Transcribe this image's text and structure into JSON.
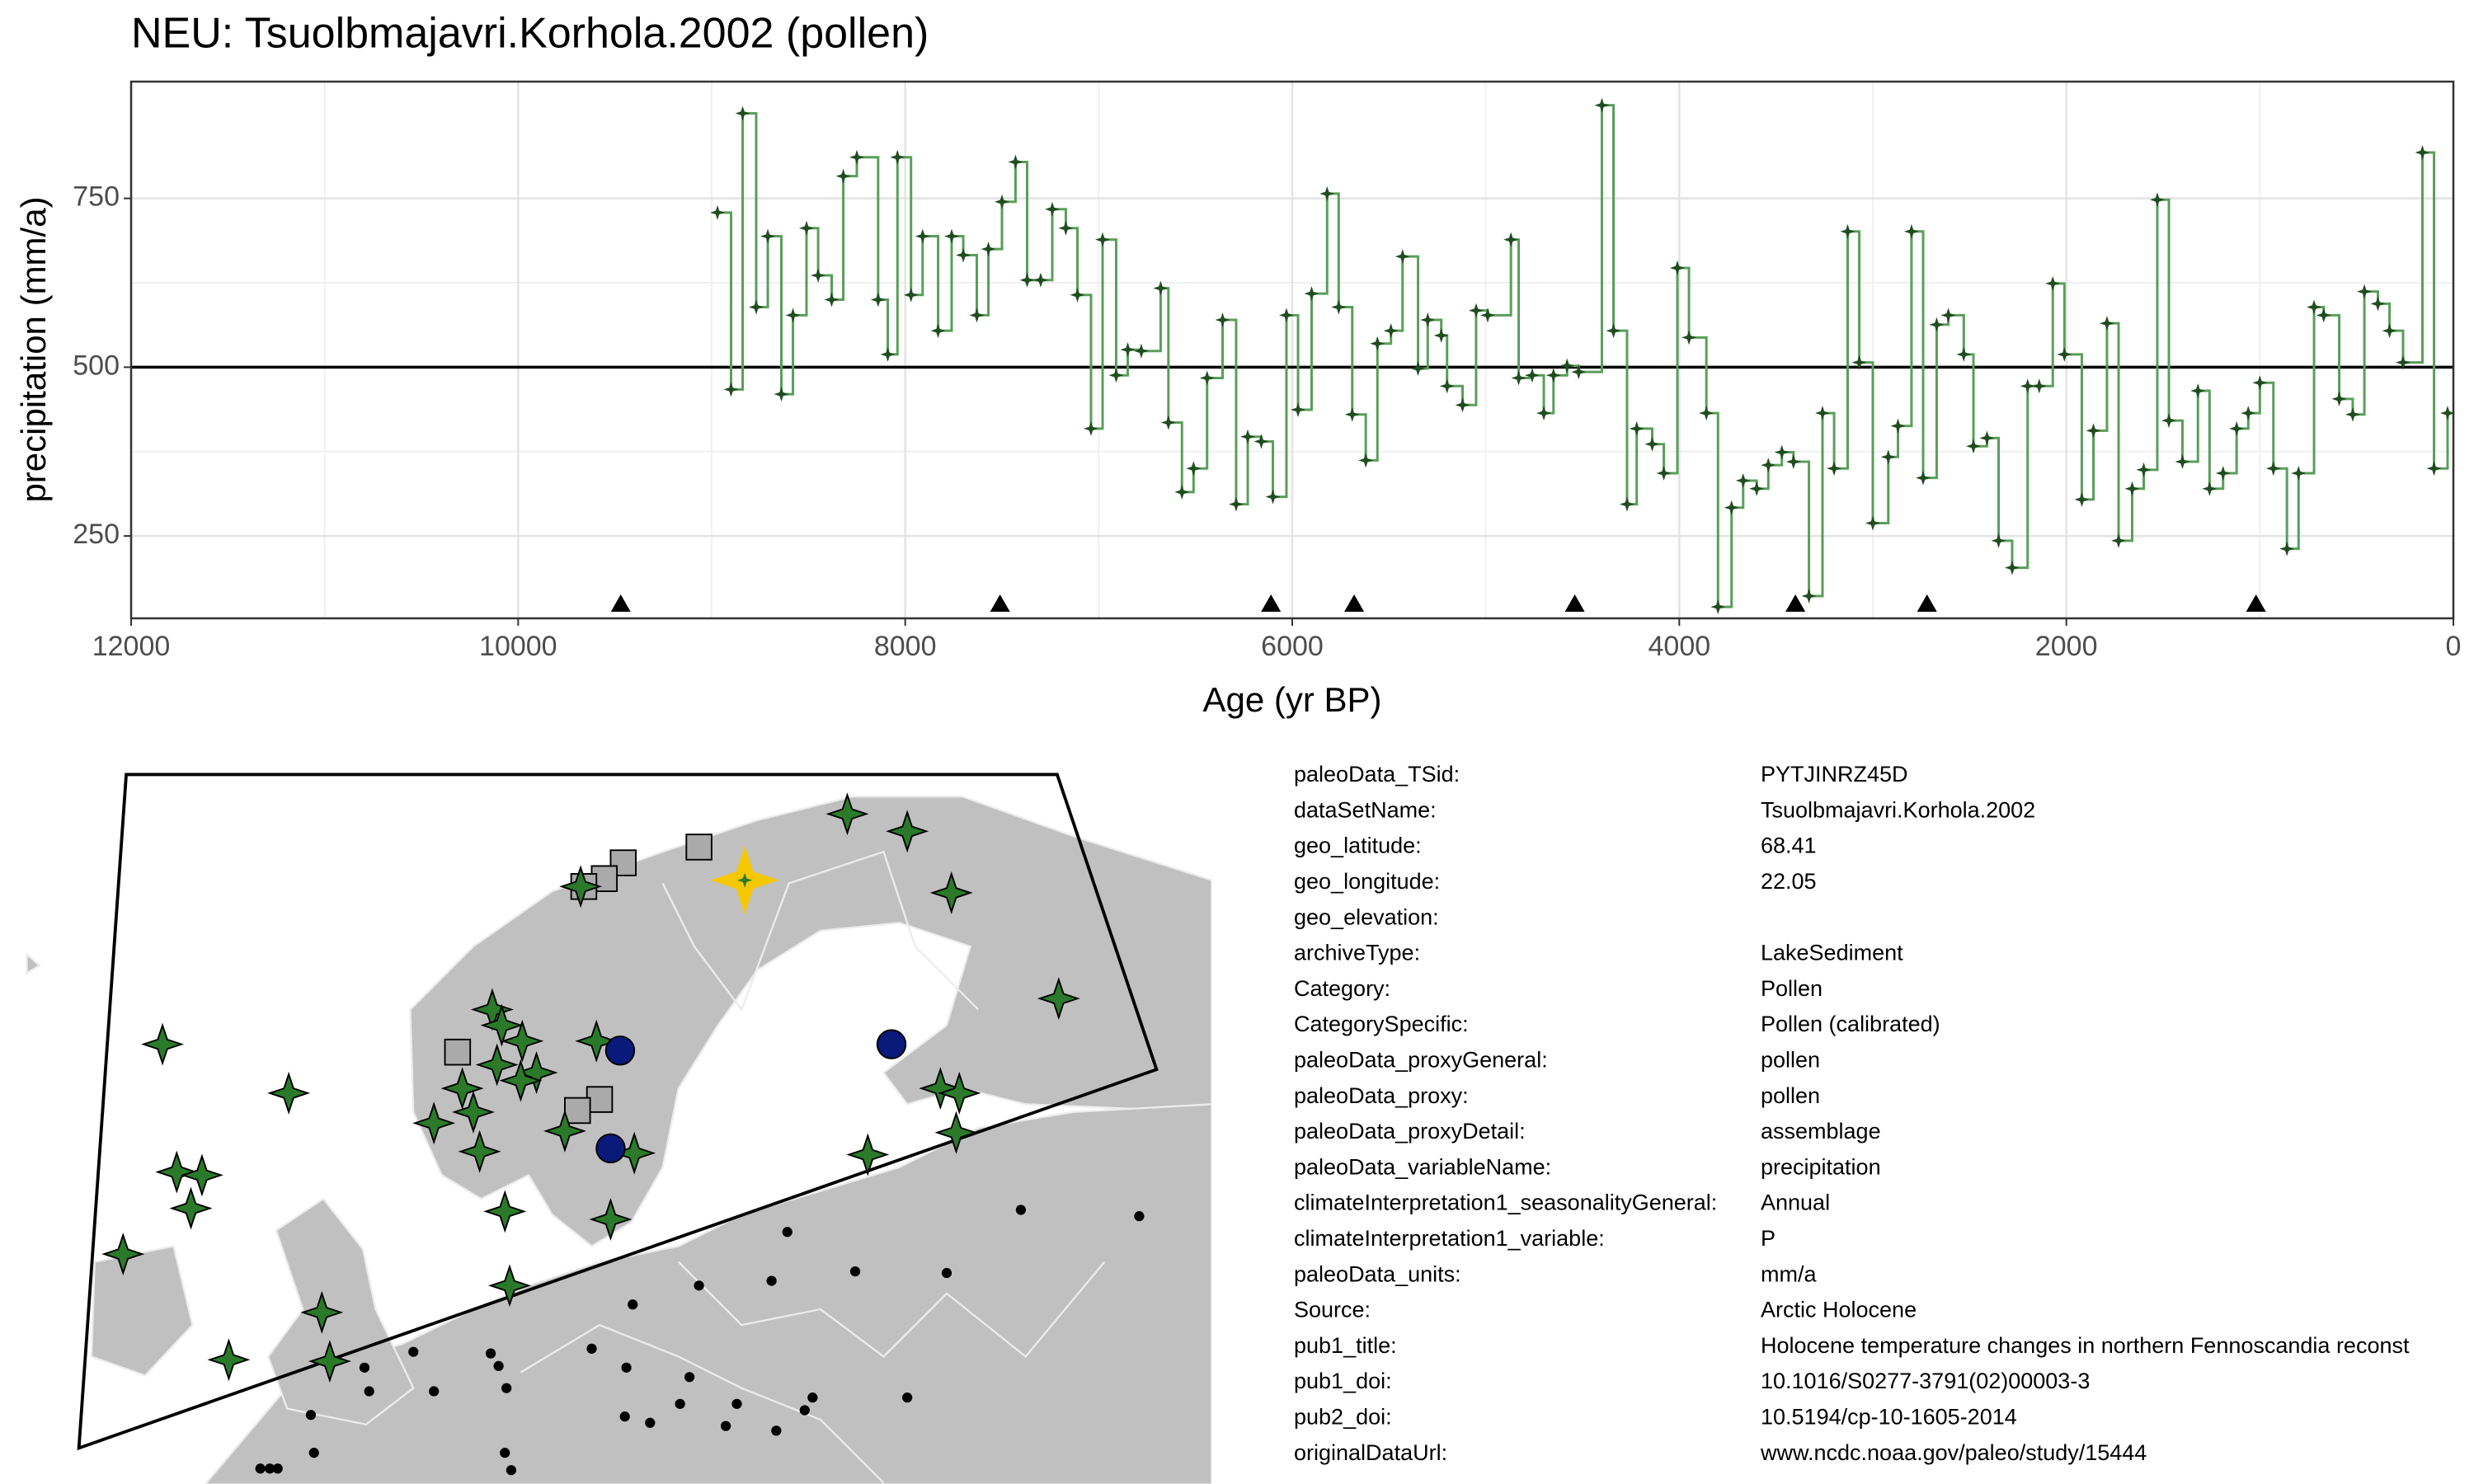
{
  "chart_data": {
    "type": "line",
    "title": "NEU: Tsuolbmajavri.Korhola.2002 (pollen)",
    "x_label": "Age (yr BP)",
    "y_label": "precipitation (mm/a)",
    "x": [
      8970,
      8900,
      8840,
      8770,
      8710,
      8640,
      8580,
      8510,
      8450,
      8380,
      8320,
      8250,
      8140,
      8090,
      8040,
      7970,
      7910,
      7830,
      7760,
      7700,
      7630,
      7570,
      7500,
      7430,
      7370,
      7300,
      7240,
      7170,
      7110,
      7040,
      6980,
      6910,
      6850,
      6780,
      6680,
      6640,
      6570,
      6510,
      6440,
      6360,
      6290,
      6230,
      6160,
      6100,
      6030,
      5970,
      5900,
      5820,
      5760,
      5690,
      5620,
      5560,
      5490,
      5430,
      5350,
      5300,
      5230,
      5200,
      5120,
      5050,
      4990,
      4870,
      4830,
      4760,
      4700,
      4650,
      4580,
      4520,
      4400,
      4340,
      4270,
      4220,
      4140,
      4080,
      4010,
      3950,
      3860,
      3800,
      3730,
      3670,
      3600,
      3540,
      3470,
      3410,
      3330,
      3260,
      3200,
      3130,
      3070,
      3000,
      2920,
      2870,
      2800,
      2740,
      2670,
      2610,
      2530,
      2480,
      2410,
      2350,
      2280,
      2200,
      2140,
      2070,
      2010,
      1920,
      1860,
      1790,
      1730,
      1660,
      1600,
      1530,
      1470,
      1400,
      1320,
      1260,
      1190,
      1120,
      1060,
      1000,
      930,
      860,
      800,
      720,
      670,
      590,
      520,
      460,
      390,
      330,
      260,
      160,
      100,
      30
    ],
    "series": [
      {
        "color": "#5a9e5a",
        "marker_color": "#1f4d1f",
        "values": [
          729,
          467,
          876,
          589,
          694,
          460,
          577,
          706,
          636,
          600,
          783,
          811,
          600,
          519,
          811,
          607,
          694,
          554,
          694,
          666,
          577,
          675,
          745,
          804,
          629,
          629,
          734,
          706,
          607,
          409,
          689,
          488,
          526,
          524,
          617,
          418,
          315,
          350,
          484,
          570,
          297,
          397,
          390,
          308,
          577,
          437,
          609,
          757,
          589,
          430,
          362,
          535,
          554,
          664,
          498,
          570,
          547,
          472,
          444,
          584,
          577,
          689,
          484,
          488,
          432,
          488,
          502,
          493,
          888,
          554,
          297,
          409,
          386,
          343,
          647,
          544,
          432,
          145,
          292,
          332,
          320,
          355,
          374,
          360,
          161,
          432,
          350,
          701,
          507,
          269,
          367,
          413,
          701,
          336,
          563,
          577,
          519,
          383,
          395,
          243,
          203,
          472,
          472,
          624,
          519,
          304,
          406,
          565,
          243,
          320,
          348,
          748,
          421,
          360,
          465,
          320,
          343,
          409,
          432,
          477,
          350,
          231,
          343,
          589,
          577,
          453,
          430,
          612,
          594,
          554,
          507,
          818,
          350,
          432
        ]
      }
    ],
    "hline": 500,
    "age_markers": {
      "x": [
        9470,
        7510,
        6110,
        5680,
        4540,
        3400,
        2720,
        1020
      ],
      "y": 150
    },
    "xlim": [
      12000,
      0
    ],
    "xticks": [
      12000,
      10000,
      8000,
      6000,
      4000,
      2000,
      0
    ],
    "ylim": [
      128,
      923
    ],
    "yticks": [
      250,
      500,
      750
    ],
    "grid": true
  },
  "metadata": [
    {
      "label": "paleoData_TSid:",
      "value": "PYTJINRZ45D"
    },
    {
      "label": "dataSetName:",
      "value": "Tsuolbmajavri.Korhola.2002"
    },
    {
      "label": "geo_latitude:",
      "value": "68.41"
    },
    {
      "label": "geo_longitude:",
      "value": "22.05"
    },
    {
      "label": "geo_elevation:"
    },
    {
      "label": "archiveType:",
      "value": "LakeSediment"
    },
    {
      "label": "Category:",
      "value": "Pollen"
    },
    {
      "label": "CategorySpecific:",
      "value": "Pollen (calibrated)"
    },
    {
      "label": "paleoData_proxyGeneral:",
      "value": "pollen"
    },
    {
      "label": "paleoData_proxy:",
      "value": "pollen"
    },
    {
      "label": "paleoData_proxyDetail:",
      "value": "assemblage"
    },
    {
      "label": "paleoData_variableName:",
      "value": "precipitation"
    },
    {
      "label": "climateInterpretation1_seasonalityGeneral:",
      "value": "Annual"
    },
    {
      "label": "climateInterpretation1_variable:",
      "value": "P"
    },
    {
      "label": "paleoData_units:",
      "value": "mm/a"
    },
    {
      "label": "Source:",
      "value": "Arctic Holocene"
    },
    {
      "label": "pub1_title:",
      "value": "Holocene temperature changes in northern Fennoscandia reconst"
    },
    {
      "label": "pub1_doi:",
      "value": "10.1016/S0277-3791(02)00003-3"
    },
    {
      "label": "pub2_doi:",
      "value": "10.5194/cp-10-1605-2014"
    },
    {
      "label": "originalDataUrl:",
      "value": "www.ncdc.noaa.gov/paleo/study/15444"
    }
  ]
}
